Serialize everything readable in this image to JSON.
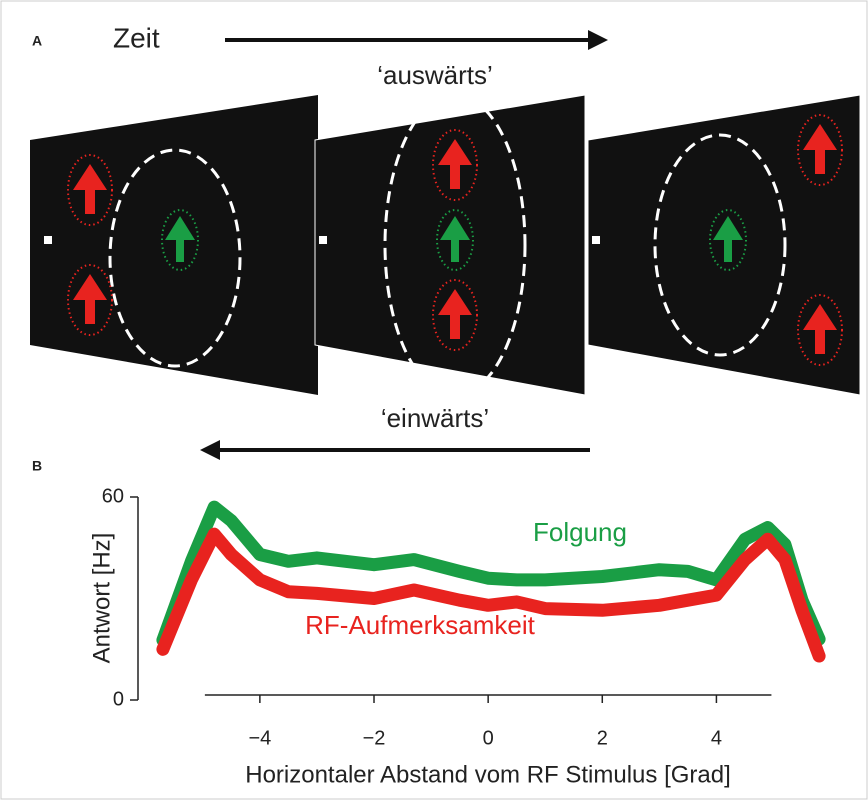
{
  "panel_a": {
    "label": "A",
    "time_label": "Zeit",
    "outward_label": "‘auswärts’",
    "inward_label": "‘einwärts’"
  },
  "chart_data": {
    "type": "line",
    "panel_label": "B",
    "x_label": "Horizontaler Abstand vom RF Stimulus [Grad]",
    "y_label": "Antwort [Hz]",
    "x": [
      -5.7,
      -5.2,
      -4.8,
      -4.5,
      -4,
      -3.5,
      -3,
      -2,
      -1.3,
      -0.5,
      0,
      0.5,
      1,
      2,
      3,
      3.5,
      4,
      4.5,
      4.9,
      5.2,
      5.5,
      5.8
    ],
    "series": [
      {
        "name": "Folgung",
        "color": "#1a9e45",
        "values": [
          17.7,
          41,
          57,
          53,
          43,
          41,
          42,
          40,
          41.5,
          38,
          36,
          35.5,
          35.5,
          36.5,
          38.5,
          38,
          35.5,
          47.5,
          51,
          46,
          29.5,
          18
        ]
      },
      {
        "name": "RF-Aufmerksamkeit",
        "color": "#e8231f",
        "values": [
          15,
          35.5,
          49,
          43,
          35.5,
          32,
          31.5,
          30,
          32.5,
          29.5,
          28,
          29,
          27,
          26.5,
          28,
          29.5,
          31,
          41.5,
          47.5,
          41.5,
          26.5,
          13
        ]
      }
    ],
    "xlim": [
      -5.75,
      5.85
    ],
    "ylim": [
      0,
      60
    ],
    "xticks": [
      {
        "value": -4,
        "label": "−4"
      },
      {
        "value": -2,
        "label": "−2"
      },
      0,
      2,
      4
    ],
    "yticks": [
      0,
      60
    ]
  }
}
